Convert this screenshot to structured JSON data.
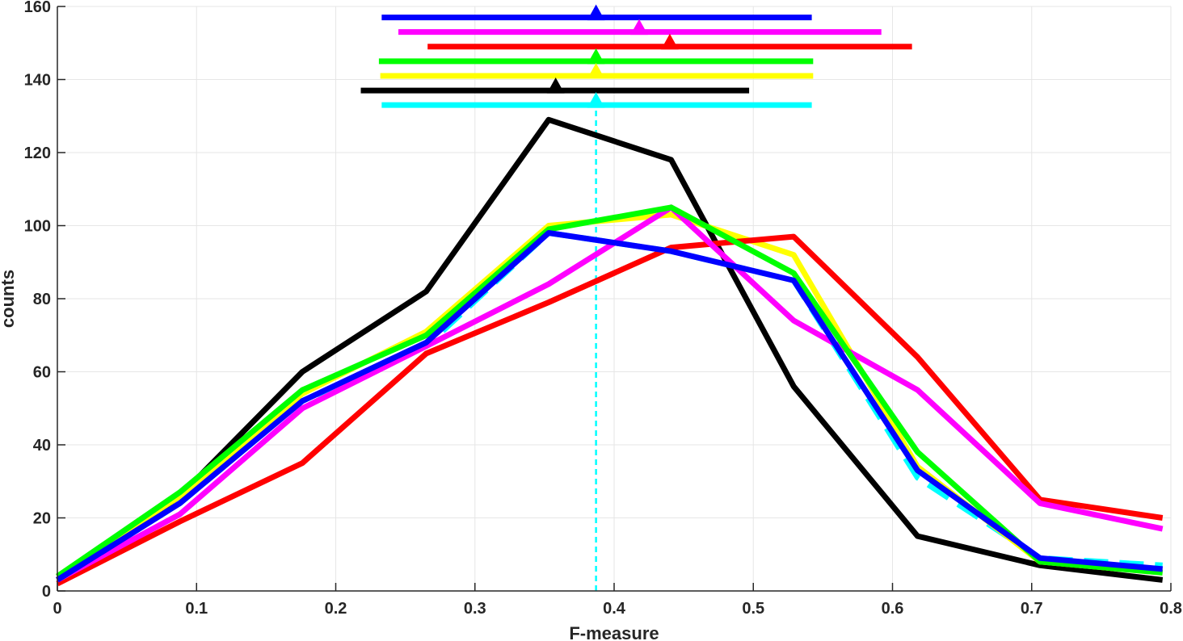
{
  "chart_data": {
    "type": "line",
    "title": "",
    "xlabel": "F-measure",
    "ylabel": "counts",
    "xlim": [
      0,
      0.8
    ],
    "ylim": [
      0,
      160
    ],
    "grid": true,
    "x_ticks": [
      0,
      0.1,
      0.2,
      0.3,
      0.4,
      0.5,
      0.6,
      0.7,
      0.8
    ],
    "x_tick_labels": [
      "0",
      "0.1",
      "0.2",
      "0.3",
      "0.4",
      "0.5",
      "0.6",
      "0.7",
      "0.8"
    ],
    "y_ticks": [
      0,
      20,
      40,
      60,
      80,
      100,
      120,
      140,
      160
    ],
    "y_tick_labels": [
      "0",
      "20",
      "40",
      "60",
      "80",
      "100",
      "120",
      "140",
      "160"
    ],
    "x": [
      0,
      0.088,
      0.176,
      0.265,
      0.353,
      0.441,
      0.529,
      0.618,
      0.706,
      0.794
    ],
    "series": [
      {
        "name": "cyan",
        "color": "#00ffff",
        "dashed": true,
        "values": [
          3,
          24,
          52,
          67,
          98,
          93,
          85,
          31,
          9,
          7
        ]
      },
      {
        "name": "black",
        "color": "#000000",
        "dashed": false,
        "values": [
          3,
          26,
          60,
          82,
          129,
          118,
          56,
          15,
          7,
          3
        ]
      },
      {
        "name": "yellow",
        "color": "#ffff00",
        "dashed": false,
        "values": [
          4,
          26,
          54,
          71,
          100,
          103,
          92,
          34,
          8,
          5
        ]
      },
      {
        "name": "red",
        "color": "#ff0000",
        "dashed": false,
        "values": [
          2,
          19,
          35,
          65,
          79,
          94,
          97,
          64,
          25,
          20
        ]
      },
      {
        "name": "magenta",
        "color": "#ff00ff",
        "dashed": false,
        "values": [
          3,
          21,
          50,
          67,
          84,
          105,
          74,
          55,
          24,
          17
        ]
      },
      {
        "name": "green",
        "color": "#00ff00",
        "dashed": false,
        "values": [
          4,
          27,
          55,
          70,
          99,
          105,
          87,
          38,
          8,
          5
        ]
      },
      {
        "name": "blue",
        "color": "#0000ff",
        "dashed": false,
        "values": [
          3,
          24,
          52,
          68,
          98,
          93,
          85,
          33,
          9,
          6
        ]
      }
    ],
    "intervals": [
      {
        "name": "blue",
        "color": "#0000ff",
        "y": 157,
        "low": 0.233,
        "high": 0.542,
        "marker": 0.387
      },
      {
        "name": "magenta",
        "color": "#ff00ff",
        "y": 153,
        "low": 0.245,
        "high": 0.592,
        "marker": 0.418
      },
      {
        "name": "red",
        "color": "#ff0000",
        "y": 149,
        "low": 0.266,
        "high": 0.614,
        "marker": 0.44
      },
      {
        "name": "green",
        "color": "#00ff00",
        "y": 145,
        "low": 0.231,
        "high": 0.543,
        "marker": 0.387
      },
      {
        "name": "yellow",
        "color": "#ffff00",
        "y": 141,
        "low": 0.232,
        "high": 0.543,
        "marker": 0.387
      },
      {
        "name": "black",
        "color": "#000000",
        "y": 137,
        "low": 0.218,
        "high": 0.497,
        "marker": 0.358
      },
      {
        "name": "cyan",
        "color": "#00ffff",
        "y": 133,
        "low": 0.233,
        "high": 0.542,
        "marker": 0.387
      }
    ],
    "reference_line": {
      "x": 0.387,
      "color": "#00ffff",
      "dashed": true
    }
  }
}
